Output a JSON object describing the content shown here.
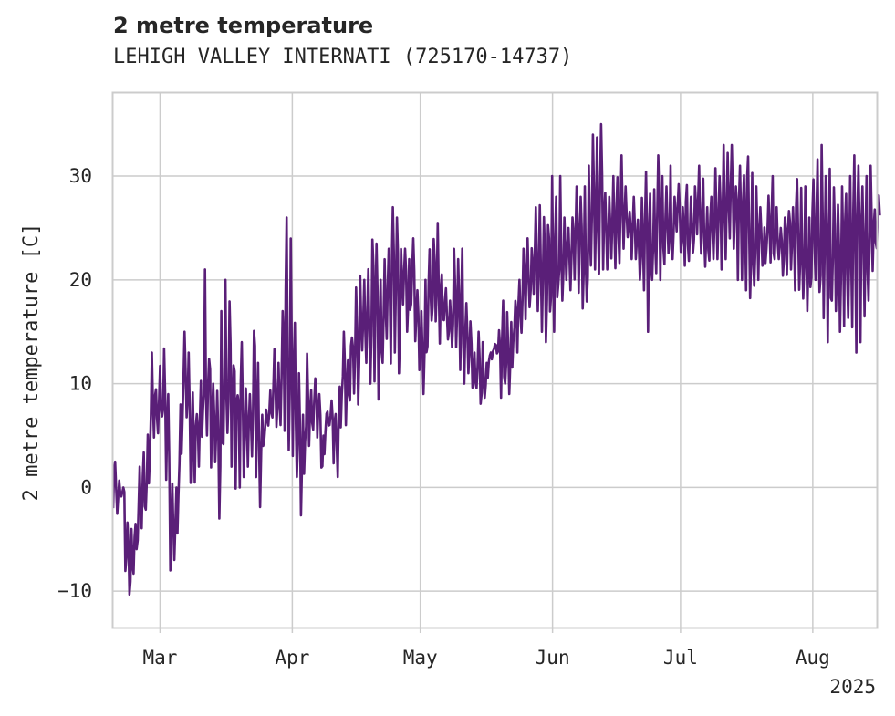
{
  "chart_data": {
    "type": "line",
    "title": "2 metre temperature",
    "subtitle": "LEHIGH VALLEY INTERNATI (725170-14737)",
    "ylabel": "2 metre temperature [C]",
    "xlabel": "",
    "year_label": "2025",
    "xlim": [
      "2025-02-18",
      "2025-08-16"
    ],
    "ylim": [
      -13.5,
      38
    ],
    "x_ticks": [
      {
        "date": "2025-03-01",
        "label": "Mar"
      },
      {
        "date": "2025-04-01",
        "label": "Apr"
      },
      {
        "date": "2025-05-01",
        "label": "May"
      },
      {
        "date": "2025-06-01",
        "label": "Jun"
      },
      {
        "date": "2025-07-01",
        "label": "Jul"
      },
      {
        "date": "2025-08-01",
        "label": "Aug"
      }
    ],
    "y_ticks": [
      -10,
      0,
      10,
      20,
      30
    ],
    "grid": true,
    "legend": "none",
    "line_color": "#5a1f78",
    "series": [
      {
        "x_start": "2025-02-18",
        "x_end": "2025-08-16",
        "daily_min": [
          -2,
          -3,
          -1,
          -9,
          -11,
          -10,
          -7,
          -6,
          -4,
          3,
          4,
          5,
          5,
          0,
          -8,
          -7,
          -3,
          6,
          5,
          0,
          -1,
          2,
          3,
          5,
          0,
          1,
          -3,
          2,
          2,
          2,
          -1,
          0,
          1,
          2,
          3,
          1,
          -4,
          4,
          5,
          5,
          5,
          6,
          4,
          2,
          1,
          1,
          -3,
          3,
          4,
          5,
          4,
          1,
          5,
          6,
          2,
          1,
          7,
          6,
          7,
          9,
          8,
          13,
          12,
          10,
          8,
          5,
          12,
          14,
          10,
          13,
          11,
          17,
          15,
          16,
          14,
          10,
          9,
          11,
          14,
          16,
          13,
          15,
          14,
          12,
          11,
          10,
          10,
          11,
          9,
          9,
          7,
          8,
          12,
          13,
          12,
          6,
          10,
          9,
          14,
          13,
          14,
          15,
          16,
          18,
          17,
          15,
          14,
          14,
          15,
          16,
          18,
          20,
          19,
          18,
          17,
          16,
          15,
          19,
          21,
          20,
          19,
          21,
          22,
          20,
          21,
          23,
          24,
          22,
          22,
          20,
          19,
          15,
          20,
          20,
          20,
          21,
          20,
          22,
          24,
          22,
          21,
          21,
          22,
          23,
          22,
          20,
          21,
          22,
          22,
          21,
          22,
          24,
          23,
          20,
          20,
          19,
          17,
          18,
          20,
          20,
          21,
          20,
          22,
          22,
          20,
          20,
          21,
          19,
          18,
          16,
          17,
          20,
          20,
          16,
          13,
          14,
          18,
          17,
          15,
          14,
          16,
          15,
          13,
          14,
          16,
          18,
          20,
          22
        ],
        "daily_max": [
          3,
          1,
          0,
          -3,
          -4,
          -2,
          2,
          4,
          7,
          13,
          11,
          12,
          14,
          9,
          1,
          0,
          8,
          15,
          13,
          10,
          9,
          12,
          21,
          14,
          10,
          12,
          17,
          20,
          19,
          15,
          12,
          14,
          11,
          9,
          18,
          12,
          7,
          8,
          10,
          14,
          12,
          17,
          26,
          24,
          16,
          11,
          7,
          14,
          10,
          12,
          9,
          5,
          8,
          9,
          8,
          11,
          15,
          14,
          16,
          21,
          22,
          20,
          24,
          26,
          24,
          20,
          22,
          23,
          27,
          26,
          24,
          23,
          22,
          24,
          19,
          17,
          20,
          24,
          25,
          26,
          22,
          20,
          18,
          24,
          22,
          23,
          19,
          16,
          13,
          15,
          14,
          12,
          13,
          14,
          16,
          18,
          17,
          16,
          19,
          20,
          23,
          24,
          25,
          27,
          30,
          28,
          29,
          30,
          28,
          30,
          26,
          25,
          27,
          29,
          28,
          29,
          31,
          34,
          36,
          35,
          30,
          28,
          30,
          31,
          32,
          29,
          27,
          28,
          26,
          28,
          31,
          30,
          29,
          32,
          30,
          29,
          31,
          28,
          30,
          27,
          30,
          28,
          29,
          31,
          30,
          27,
          28,
          31,
          30,
          33,
          35,
          33,
          29,
          31,
          33,
          35,
          32,
          29,
          27,
          26,
          29,
          30,
          27,
          25,
          26,
          28,
          27,
          30,
          31,
          29,
          26,
          30,
          32,
          33,
          30,
          31,
          32,
          28,
          29,
          31,
          30,
          32,
          31,
          29,
          30,
          31,
          29,
          30
        ]
      }
    ]
  }
}
